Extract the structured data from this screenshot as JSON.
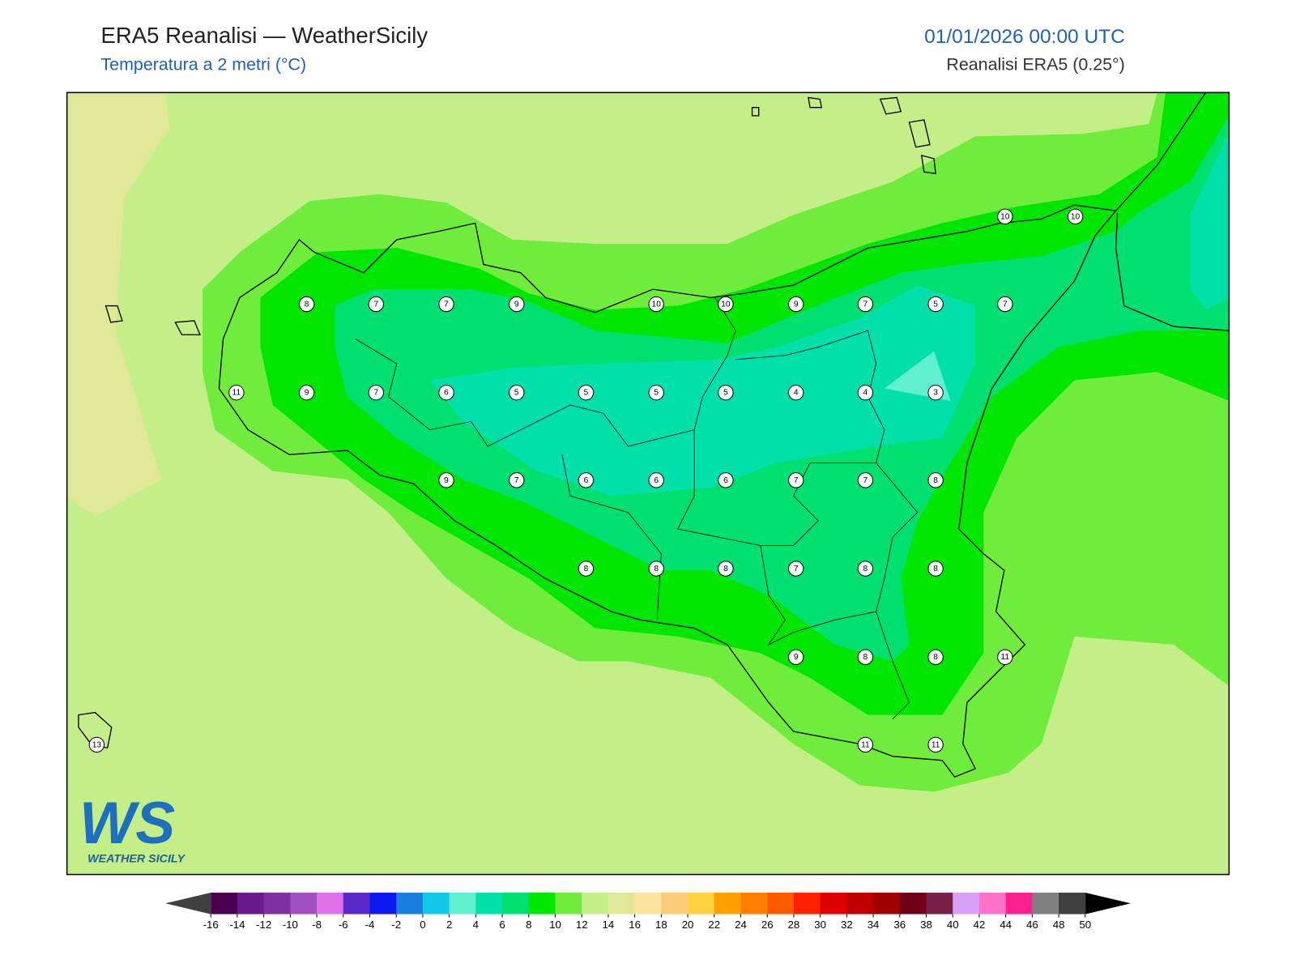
{
  "header": {
    "title": "ERA5 Reanalisi — WeatherSicily",
    "subtitle": "Temperatura a 2 metri (°C)",
    "datetime": "01/01/2026 00:00 UTC",
    "source": "Reanalisi ERA5 (0.25°)"
  },
  "stations": [
    8,
    7,
    7,
    9,
    10,
    10,
    9,
    7,
    5,
    7,
    10,
    10,
    11,
    9,
    7,
    6,
    5,
    5,
    5,
    5,
    4,
    4,
    3,
    9,
    7,
    6,
    6,
    6,
    7,
    7,
    8,
    8,
    8,
    8,
    7,
    8,
    8,
    9,
    8,
    8,
    11,
    13,
    11,
    11
  ],
  "colorbar": {
    "ticks": [
      -16,
      -14,
      -12,
      -10,
      -8,
      -6,
      -4,
      -2,
      0,
      2,
      4,
      6,
      8,
      10,
      12,
      14,
      16,
      18,
      20,
      22,
      24,
      26,
      28,
      30,
      32,
      34,
      36,
      38,
      40,
      42,
      44,
      46,
      48,
      50
    ],
    "colors": [
      "#4a0050",
      "#6a1a8c",
      "#7e30a0",
      "#a050c0",
      "#e070e8",
      "#5a28c8",
      "#0a1af0",
      "#1a80e0",
      "#10c8e8",
      "#60f0d0",
      "#00e0a8",
      "#00e070",
      "#00e800",
      "#70ec3c",
      "#c4ee88",
      "#e0e898",
      "#ffe4a0",
      "#fccc78",
      "#ffd040",
      "#ffa000",
      "#ff8000",
      "#ff5a00",
      "#ff2000",
      "#e00000",
      "#c00000",
      "#a00000",
      "#700018",
      "#782048",
      "#d8a0f8",
      "#ff70c8",
      "#ff2090",
      "#808080",
      "#404040"
    ],
    "under": "#404040",
    "over": "#000000"
  },
  "logo": {
    "mark": "WS",
    "text": "WEATHER SICILY"
  }
}
